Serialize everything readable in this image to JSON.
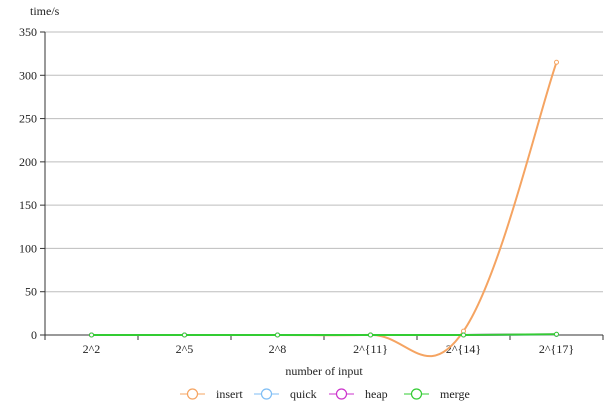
{
  "chart_data": {
    "type": "line",
    "title": "",
    "xlabel": "number of input",
    "ylabel": "time/s",
    "categories": [
      "2^2",
      "2^5",
      "2^8",
      "2^{11}",
      "2^{14}",
      "2^{17}"
    ],
    "ylim": [
      0,
      350
    ],
    "yticks": [
      0,
      50,
      100,
      150,
      200,
      250,
      300,
      350
    ],
    "grid": true,
    "legend_position": "bottom",
    "series": [
      {
        "name": "insert",
        "color": "#f5a462",
        "values": [
          0,
          0,
          0,
          0.1,
          4.5,
          315
        ]
      },
      {
        "name": "quick",
        "color": "#7fbef5",
        "values": [
          0,
          0,
          0,
          0,
          0.05,
          0.6
        ]
      },
      {
        "name": "heap",
        "color": "#cc33cc",
        "values": [
          0,
          0,
          0,
          0,
          0.05,
          0.7
        ]
      },
      {
        "name": "merge",
        "color": "#33cc33",
        "values": [
          0,
          0,
          0,
          0,
          0.05,
          0.8
        ]
      }
    ]
  }
}
